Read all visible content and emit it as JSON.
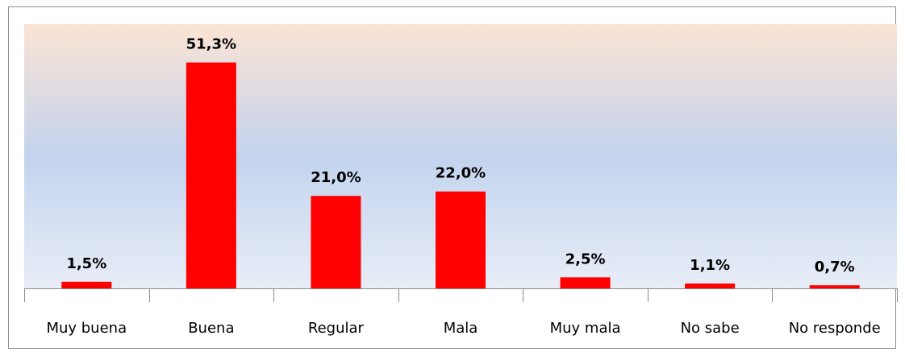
{
  "chart_data": {
    "type": "bar",
    "categories": [
      "Muy buena",
      "Buena",
      "Regular",
      "Mala",
      "Muy mala",
      "No sabe",
      "No responde"
    ],
    "values": [
      1.5,
      51.3,
      21.0,
      22.0,
      2.5,
      1.1,
      0.7
    ],
    "value_labels": [
      "1,5%",
      "51,3%",
      "21,0%",
      "22,0%",
      "2,5%",
      "1,1%",
      "0,7%"
    ],
    "color": "#ff0000",
    "ylim": [
      0,
      60
    ]
  }
}
